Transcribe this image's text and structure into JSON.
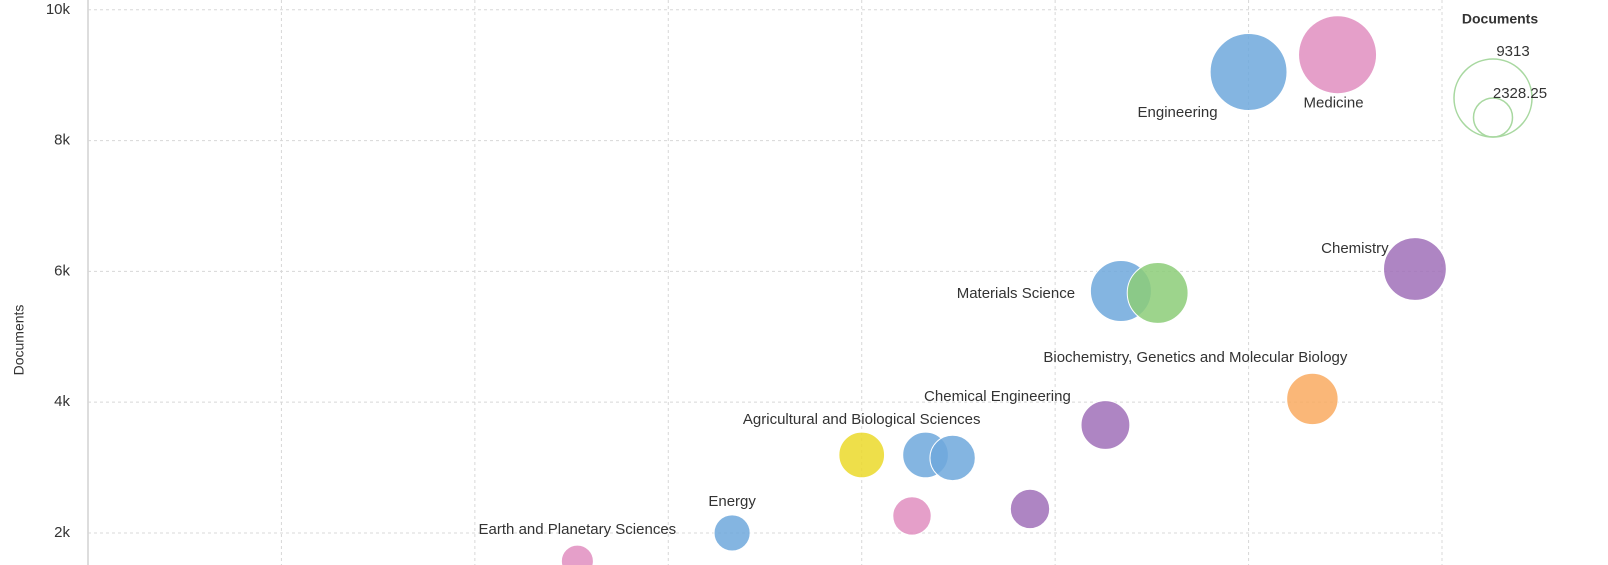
{
  "chart_data": {
    "type": "bubble",
    "y_label": "Documents",
    "labels": [
      "Engineering",
      "Medicine",
      "Chemistry",
      "Materials Science",
      null,
      "Biochemistry, Genetics and Molecular Biology",
      "Chemical Engineering",
      "Agricultural and Biological Sciences",
      null,
      null,
      null,
      null,
      "Energy",
      "Earth and Planetary Sciences"
    ],
    "x": [
      6.0,
      6.46,
      6.86,
      5.34,
      5.53,
      6.33,
      5.26,
      4.0,
      4.33,
      4.47,
      4.26,
      4.87,
      3.33,
      2.53
    ],
    "y": [
      9049,
      9313,
      6037,
      5700,
      5670,
      4049,
      3651,
      3193,
      3193,
      3147,
      2260,
      2367,
      2000,
      1570
    ],
    "sizes": [
      9049,
      9313,
      6037,
      5700,
      5670,
      4049,
      3651,
      3193,
      3193,
      3147,
      2260,
      2367,
      2000,
      1570
    ],
    "colors": [
      "#6fa8dc",
      "#e08ec0",
      "#a070b8",
      "#6fa8dc",
      "#8ccc78",
      "#f9aa60",
      "#a070b8",
      "#ebd92a",
      "#6fa8dc",
      "#6fa8dc",
      "#e08ec0",
      "#a070b8",
      "#6fa8dc",
      "#e08ec0"
    ],
    "xlim": [
      0,
      7
    ],
    "xticks": [
      0,
      1,
      2,
      3,
      4,
      5,
      6,
      7
    ],
    "ylim": [
      1510,
      10150
    ],
    "yticks": [
      {
        "value": 2000,
        "label": "2k"
      },
      {
        "value": 4000,
        "label": "4k"
      },
      {
        "value": 6000,
        "label": "6k"
      },
      {
        "value": 8000,
        "label": "8k"
      },
      {
        "value": 10000,
        "label": "10k"
      }
    ],
    "grid": true,
    "size_legend": {
      "title": "Documents",
      "values": [
        9313,
        2328.25
      ]
    }
  }
}
